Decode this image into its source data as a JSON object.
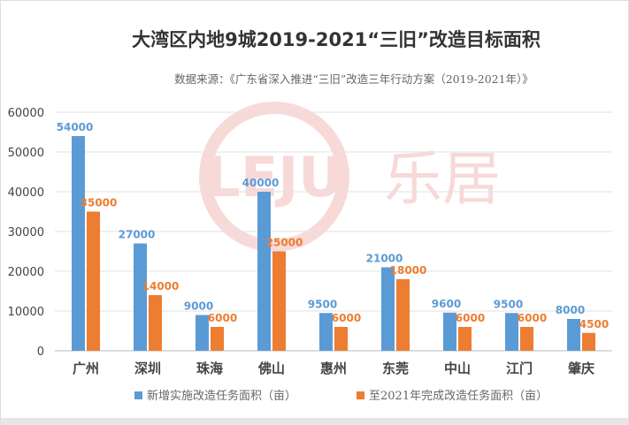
{
  "chart_data": {
    "type": "bar",
    "title": "大湾区内地9城2019-2021“三旧”改造目标面积",
    "subtitle": "数据来源：《广东省深入推进“三旧”改造三年行动方案（2019-2021年）》",
    "categories": [
      "广州",
      "深圳",
      "珠海",
      "佛山",
      "惠州",
      "东莞",
      "中山",
      "江门",
      "肇庆"
    ],
    "series": [
      {
        "name": "新增实施改造任务面积（亩）",
        "color": "#5B9BD5",
        "values": [
          54000,
          27000,
          9000,
          40000,
          9500,
          21000,
          9600,
          9500,
          8000
        ]
      },
      {
        "name": "至2021年完成改造任务面积（亩）",
        "color": "#ED7D31",
        "values": [
          35000,
          14000,
          6000,
          25000,
          6000,
          18000,
          6000,
          6000,
          4500
        ]
      }
    ],
    "ylim": [
      0,
      60000
    ],
    "yticks": [
      0,
      10000,
      20000,
      30000,
      40000,
      50000,
      60000
    ],
    "grid": true,
    "legend": "bottom",
    "data_labels": true,
    "watermark": "LEJU 乐居"
  }
}
